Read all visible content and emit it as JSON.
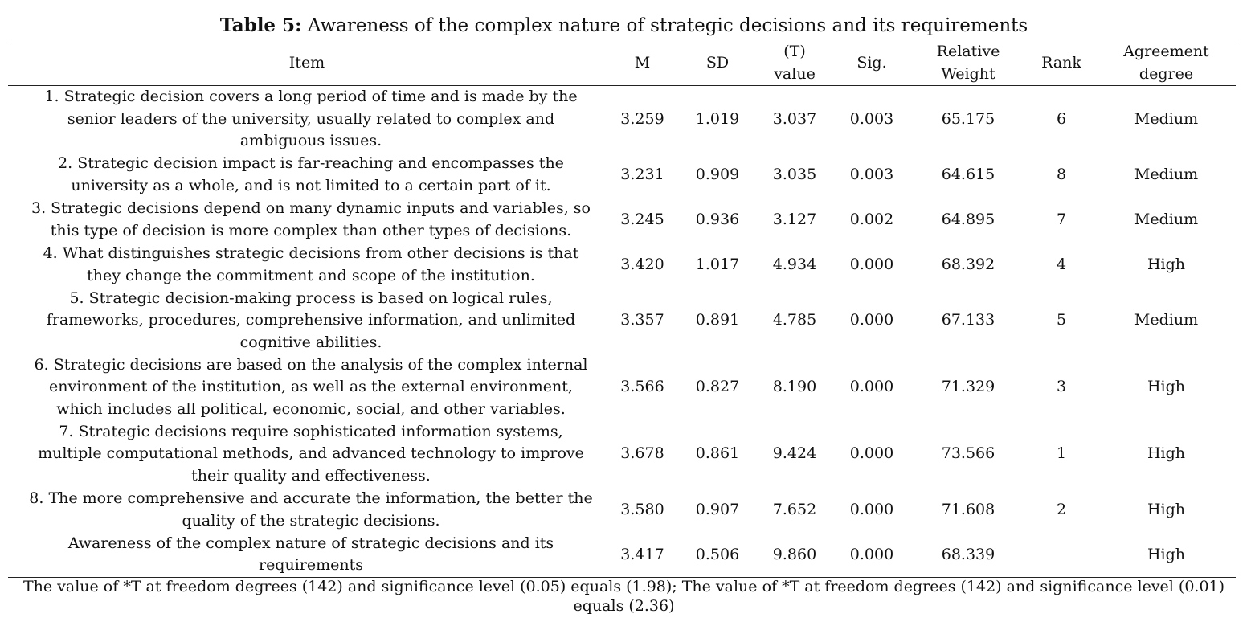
{
  "title": {
    "bold": "Table 5:",
    "text": " Awareness of the complex nature of strategic decisions and its requirements"
  },
  "headers": {
    "item": "Item",
    "m": "M",
    "sd": "SD",
    "t_line1": "(T)",
    "t_line2": "value",
    "sig": "Sig.",
    "rw_line1": "Relative",
    "rw_line2": "Weight",
    "rank": "Rank",
    "agr_line1": "Agreement",
    "agr_line2": "degree"
  },
  "rows": [
    {
      "item": "1. Strategic decision covers a long period of time and is made by the senior leaders of the university, usually related to complex and ambiguous issues.",
      "m": "3.259",
      "sd": "1.019",
      "t": "3.037",
      "sig": "0.003",
      "rw": "65.175",
      "rank": "6",
      "agreement": "Medium"
    },
    {
      "item": "2. Strategic decision impact is far-reaching and encompasses the university as a whole, and is not limited to a certain part of it.",
      "m": "3.231",
      "sd": "0.909",
      "t": "3.035",
      "sig": "0.003",
      "rw": "64.615",
      "rank": "8",
      "agreement": "Medium"
    },
    {
      "item": "3. Strategic decisions depend on many dynamic inputs and variables, so this type of decision is more complex than other types of decisions.",
      "m": "3.245",
      "sd": "0.936",
      "t": "3.127",
      "sig": "0.002",
      "rw": "64.895",
      "rank": "7",
      "agreement": "Medium"
    },
    {
      "item": "4. What distinguishes strategic decisions from other decisions is that they change the commitment and scope of the institution.",
      "m": "3.420",
      "sd": "1.017",
      "t": "4.934",
      "sig": "0.000",
      "rw": "68.392",
      "rank": "4",
      "agreement": "High"
    },
    {
      "item": "5. Strategic decision-making process is based on logical rules, frameworks, procedures, comprehensive information, and unlimited cognitive abilities.",
      "m": "3.357",
      "sd": "0.891",
      "t": "4.785",
      "sig": "0.000",
      "rw": "67.133",
      "rank": "5",
      "agreement": "Medium"
    },
    {
      "item": "6. Strategic decisions are based on the analysis of the complex internal environment of the institution, as well as the external environment, which includes all political, economic, social, and other variables.",
      "m": "3.566",
      "sd": "0.827",
      "t": "8.190",
      "sig": "0.000",
      "rw": "71.329",
      "rank": "3",
      "agreement": "High"
    },
    {
      "item": "7. Strategic decisions require sophisticated information systems, multiple computational methods, and advanced technology to improve their quality and effectiveness.",
      "m": "3.678",
      "sd": "0.861",
      "t": "9.424",
      "sig": "0.000",
      "rw": "73.566",
      "rank": "1",
      "agreement": "High"
    },
    {
      "item": "8. The more comprehensive and accurate the information, the better the quality of the strategic decisions.",
      "m": "3.580",
      "sd": "0.907",
      "t": "7.652",
      "sig": "0.000",
      "rw": "71.608",
      "rank": "2",
      "agreement": "High"
    },
    {
      "item": "Awareness of the complex nature of strategic decisions and its requirements",
      "m": "3.417",
      "sd": "0.506",
      "t": "9.860",
      "sig": "0.000",
      "rw": "68.339",
      "rank": "",
      "agreement": "High"
    }
  ],
  "footnote": "The value of *T at freedom degrees (142) and significance level (0.05) equals (1.98); The value of *T at freedom degrees (142) and significance level (0.01) equals (2.36)"
}
